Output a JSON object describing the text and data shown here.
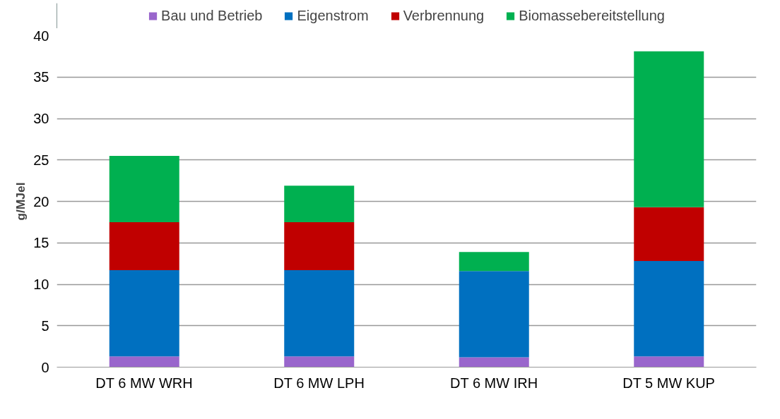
{
  "chart_data": {
    "type": "bar",
    "stacked": true,
    "ylabel": "g/MJel",
    "categories": [
      "DT 6 MW WRH",
      "DT 6 MW LPH",
      "DT 6 MW IRH",
      "DT 5 MW KUP"
    ],
    "series": [
      {
        "name": "Bau und Betrieb",
        "color": "#9966cc",
        "values": [
          1.3,
          1.3,
          1.2,
          1.3
        ]
      },
      {
        "name": "Eigenstrom",
        "color": "#0070c0",
        "values": [
          10.4,
          10.4,
          10.4,
          11.5
        ]
      },
      {
        "name": "Verbrennung",
        "color": "#c00000",
        "values": [
          5.8,
          5.8,
          null,
          6.5
        ]
      },
      {
        "name": "Biomassebereitstellung",
        "color": "#00b050",
        "values": [
          8.0,
          4.4,
          2.3,
          18.8
        ]
      }
    ],
    "ylim": [
      0,
      40
    ],
    "yticks": [
      0,
      5,
      10,
      15,
      20,
      25,
      30,
      35,
      40
    ],
    "grid": "y",
    "legend": "top"
  }
}
